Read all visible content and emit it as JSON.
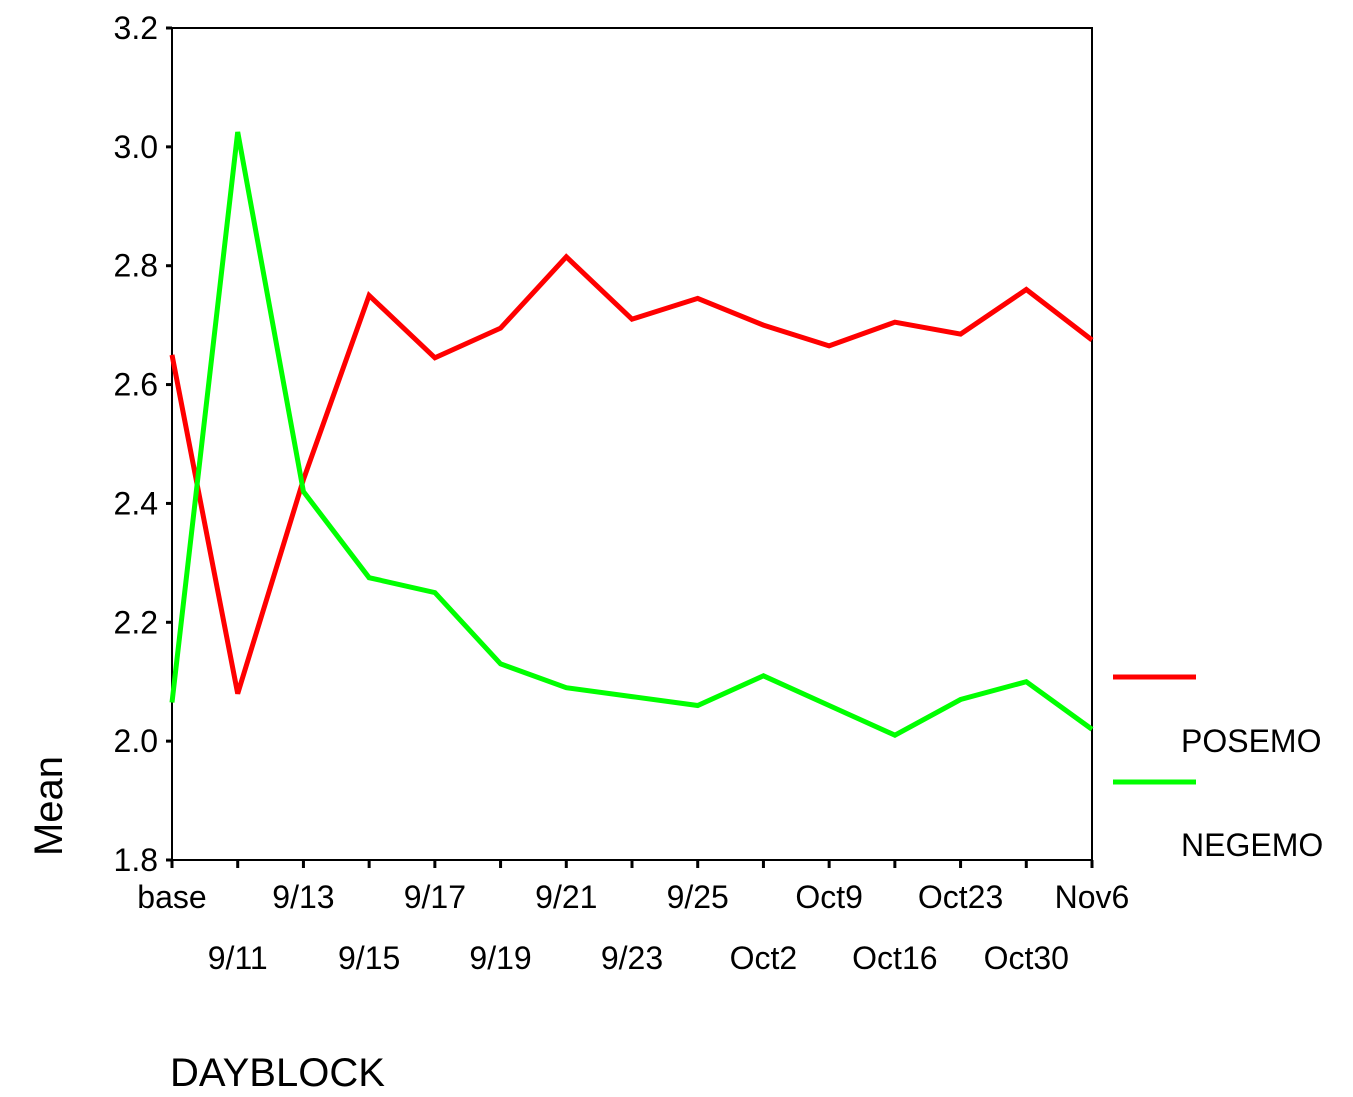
{
  "chart_data": {
    "type": "line",
    "title": "",
    "xlabel": "DAYBLOCK",
    "ylabel": "Mean",
    "categories": [
      "base",
      "9/11",
      "9/13",
      "9/15",
      "9/17",
      "9/19",
      "9/21",
      "9/23",
      "9/25",
      "Oct2",
      "Oct9",
      "Oct16",
      "Oct23",
      "Oct30",
      "Nov6"
    ],
    "series": [
      {
        "name": "POSEMO",
        "color": "#ff0000",
        "values": [
          2.65,
          2.08,
          2.44,
          2.75,
          2.645,
          2.695,
          2.815,
          2.71,
          2.745,
          2.7,
          2.665,
          2.705,
          2.685,
          2.76,
          2.675
        ]
      },
      {
        "name": "NEGEMO",
        "color": "#00ff00",
        "values": [
          2.065,
          3.025,
          2.42,
          2.275,
          2.25,
          2.13,
          2.09,
          2.075,
          2.06,
          2.11,
          2.06,
          2.01,
          2.07,
          2.1,
          2.02
        ]
      }
    ],
    "ylim": [
      1.8,
      3.2
    ],
    "yticks": [
      "1.8",
      "2.0",
      "2.2",
      "2.4",
      "2.6",
      "2.8",
      "3.0",
      "3.2"
    ],
    "grid": false,
    "legend_position": "right"
  }
}
